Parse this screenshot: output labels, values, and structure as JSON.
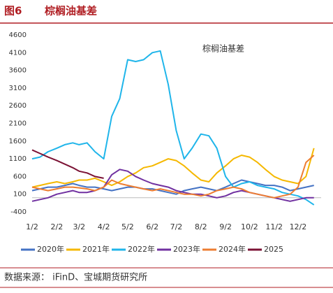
{
  "figure_label": "图6",
  "chart_data": {
    "type": "line",
    "title": "棕榈油基差",
    "x": [
      2,
      12,
      22,
      33,
      43,
      53,
      61,
      71,
      81,
      92,
      102,
      112,
      122,
      132,
      142,
      153,
      163,
      173,
      183,
      193,
      203,
      214,
      224,
      234,
      245,
      255,
      265,
      275,
      285,
      295,
      306,
      316,
      326,
      336,
      346,
      356
    ],
    "xlim": [
      2,
      365
    ],
    "xticks": [
      {
        "value": 2,
        "label": "1/2"
      },
      {
        "value": 33,
        "label": "2/2"
      },
      {
        "value": 61,
        "label": "3/2"
      },
      {
        "value": 92,
        "label": "4/2"
      },
      {
        "value": 122,
        "label": "5/2"
      },
      {
        "value": 153,
        "label": "6/2"
      },
      {
        "value": 183,
        "label": "7/2"
      },
      {
        "value": 214,
        "label": "8/2"
      },
      {
        "value": 245,
        "label": "9/2"
      },
      {
        "value": 275,
        "label": "10/2"
      },
      {
        "value": 306,
        "label": "11/2"
      },
      {
        "value": 336,
        "label": "12/2"
      }
    ],
    "ylim": [
      -400,
      4600
    ],
    "yticks": [
      4600,
      4100,
      3600,
      3100,
      2600,
      2100,
      1600,
      1100,
      600,
      100,
      -400
    ],
    "grid": false,
    "series": [
      {
        "name": "2020年",
        "color": "#4472c4",
        "values": [
          200,
          250,
          300,
          300,
          350,
          400,
          350,
          300,
          300,
          250,
          200,
          250,
          300,
          300,
          250,
          250,
          200,
          150,
          100,
          200,
          250,
          300,
          250,
          200,
          300,
          400,
          500,
          450,
          400,
          350,
          350,
          300,
          200,
          250,
          300,
          350
        ]
      },
      {
        "name": "2021年",
        "color": "#f5b800",
        "values": [
          300,
          350,
          400,
          450,
          400,
          450,
          500,
          500,
          550,
          450,
          350,
          450,
          600,
          700,
          850,
          900,
          1000,
          1100,
          1050,
          900,
          700,
          500,
          450,
          700,
          900,
          1100,
          1200,
          1150,
          1000,
          800,
          600,
          500,
          450,
          400,
          600,
          1400
        ]
      },
      {
        "name": "2022年",
        "color": "#1fb5ea",
        "values": [
          1100,
          1150,
          1300,
          1400,
          1500,
          1550,
          1500,
          1550,
          1300,
          1100,
          2300,
          2800,
          3900,
          3850,
          3900,
          4100,
          4150,
          3200,
          1900,
          1100,
          1400,
          1800,
          1750,
          1400,
          600,
          300,
          400,
          450,
          350,
          300,
          250,
          150,
          100,
          50,
          -50,
          -200
        ]
      },
      {
        "name": "2023年",
        "color": "#7030a0",
        "values": [
          -100,
          -50,
          0,
          100,
          150,
          200,
          150,
          150,
          200,
          300,
          650,
          800,
          750,
          600,
          500,
          400,
          350,
          300,
          200,
          150,
          100,
          100,
          50,
          0,
          50,
          150,
          200,
          150,
          100,
          50,
          0,
          -50,
          -100,
          -50,
          0,
          0
        ]
      },
      {
        "name": "2024年",
        "color": "#ed7d31",
        "values": [
          300,
          250,
          200,
          250,
          300,
          300,
          280,
          250,
          200,
          300,
          500,
          400,
          350,
          300,
          250,
          200,
          250,
          200,
          150,
          100,
          100,
          50,
          100,
          200,
          250,
          300,
          250,
          150,
          100,
          50,
          0,
          50,
          100,
          300,
          1000,
          1200
        ]
      },
      {
        "name": "2025",
        "color": "#7b1234",
        "values": [
          1350,
          1250,
          1150,
          1050,
          950,
          850,
          750,
          700,
          600,
          550,
          null,
          null,
          null,
          null,
          null,
          null,
          null,
          null,
          null,
          null,
          null,
          null,
          null,
          null,
          null,
          null,
          null,
          null,
          null,
          null,
          null,
          null,
          null,
          null,
          null,
          null
        ]
      }
    ]
  },
  "source": "数据来源： iFinD、宝城期货研究所"
}
